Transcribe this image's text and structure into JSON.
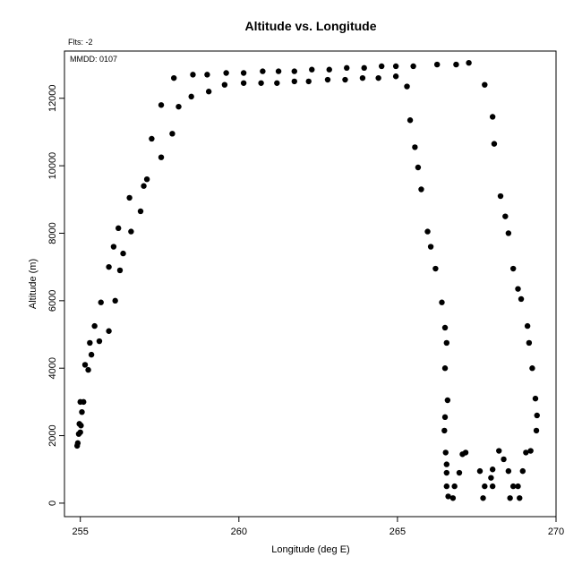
{
  "chart_data": {
    "type": "scatter",
    "title": "Altitude vs. Longitude",
    "subtitle": "Flts: -2",
    "annotation": "MMDD: 0107",
    "xlabel": "Longitude (deg E)",
    "ylabel": "Altitude (m)",
    "xlim": [
      254.5,
      270
    ],
    "ylim": [
      -400,
      13400
    ],
    "xticks": [
      255,
      260,
      265,
      270
    ],
    "yticks": [
      0,
      2000,
      4000,
      6000,
      8000,
      10000,
      12000
    ],
    "grid": false,
    "legend": "none",
    "marker_color": "#000000",
    "points": [
      [
        254.9,
        1700
      ],
      [
        254.92,
        1780
      ],
      [
        254.95,
        2050
      ],
      [
        255.0,
        2100
      ],
      [
        254.97,
        2350
      ],
      [
        255.02,
        2300
      ],
      [
        255.05,
        2700
      ],
      [
        255.0,
        3000
      ],
      [
        255.1,
        3000
      ],
      [
        255.15,
        4100
      ],
      [
        255.25,
        3950
      ],
      [
        255.3,
        4750
      ],
      [
        255.35,
        4400
      ],
      [
        255.45,
        5250
      ],
      [
        255.6,
        4800
      ],
      [
        255.65,
        5950
      ],
      [
        255.9,
        5100
      ],
      [
        255.9,
        7000
      ],
      [
        256.05,
        7600
      ],
      [
        256.1,
        6000
      ],
      [
        256.2,
        8150
      ],
      [
        256.25,
        6900
      ],
      [
        256.35,
        7400
      ],
      [
        256.6,
        8050
      ],
      [
        256.55,
        9050
      ],
      [
        256.9,
        8650
      ],
      [
        257.0,
        9400
      ],
      [
        257.1,
        9600
      ],
      [
        257.25,
        10800
      ],
      [
        257.55,
        10250
      ],
      [
        257.55,
        11800
      ],
      [
        257.9,
        10950
      ],
      [
        257.95,
        12600
      ],
      [
        258.1,
        11750
      ],
      [
        258.5,
        12050
      ],
      [
        258.55,
        12700
      ],
      [
        259.0,
        12700
      ],
      [
        259.05,
        12200
      ],
      [
        259.55,
        12400
      ],
      [
        259.6,
        12750
      ],
      [
        260.15,
        12450
      ],
      [
        260.15,
        12750
      ],
      [
        260.7,
        12450
      ],
      [
        260.75,
        12800
      ],
      [
        261.2,
        12450
      ],
      [
        261.25,
        12800
      ],
      [
        261.75,
        12500
      ],
      [
        261.75,
        12800
      ],
      [
        262.2,
        12500
      ],
      [
        262.3,
        12850
      ],
      [
        262.8,
        12550
      ],
      [
        262.85,
        12850
      ],
      [
        263.35,
        12550
      ],
      [
        263.4,
        12900
      ],
      [
        263.9,
        12600
      ],
      [
        263.95,
        12900
      ],
      [
        264.4,
        12600
      ],
      [
        264.5,
        12950
      ],
      [
        264.95,
        12650
      ],
      [
        264.95,
        12950
      ],
      [
        265.3,
        12350
      ],
      [
        265.5,
        12950
      ],
      [
        265.4,
        11350
      ],
      [
        265.55,
        10550
      ],
      [
        265.65,
        9950
      ],
      [
        265.75,
        9300
      ],
      [
        265.95,
        8050
      ],
      [
        266.05,
        7600
      ],
      [
        266.2,
        6950
      ],
      [
        266.4,
        5950
      ],
      [
        266.5,
        5200
      ],
      [
        266.55,
        4750
      ],
      [
        266.5,
        4000
      ],
      [
        266.58,
        3050
      ],
      [
        266.5,
        2550
      ],
      [
        266.48,
        2150
      ],
      [
        266.52,
        1500
      ],
      [
        266.55,
        1150
      ],
      [
        266.55,
        900
      ],
      [
        266.55,
        500
      ],
      [
        266.6,
        200
      ],
      [
        266.8,
        500
      ],
      [
        266.75,
        150
      ],
      [
        266.95,
        900
      ],
      [
        267.05,
        1450
      ],
      [
        267.15,
        1500
      ],
      [
        266.25,
        13000
      ],
      [
        266.85,
        13000
      ],
      [
        267.25,
        13050
      ],
      [
        267.6,
        950
      ],
      [
        267.75,
        500
      ],
      [
        267.7,
        150
      ],
      [
        267.95,
        750
      ],
      [
        268.0,
        1000
      ],
      [
        267.75,
        12400
      ],
      [
        268.0,
        11450
      ],
      [
        268.05,
        10650
      ],
      [
        268.25,
        9100
      ],
      [
        268.4,
        8500
      ],
      [
        268.5,
        8000
      ],
      [
        268.65,
        6950
      ],
      [
        268.8,
        6350
      ],
      [
        268.9,
        6050
      ],
      [
        269.1,
        5250
      ],
      [
        269.15,
        4750
      ],
      [
        269.25,
        4000
      ],
      [
        269.35,
        3100
      ],
      [
        269.4,
        2600
      ],
      [
        269.38,
        2150
      ],
      [
        269.2,
        1550
      ],
      [
        269.05,
        1500
      ],
      [
        268.95,
        950
      ],
      [
        268.8,
        500
      ],
      [
        268.85,
        150
      ],
      [
        268.65,
        500
      ],
      [
        268.55,
        150
      ],
      [
        268.5,
        950
      ],
      [
        268.35,
        1300
      ],
      [
        268.2,
        1550
      ],
      [
        268.0,
        500
      ]
    ]
  }
}
